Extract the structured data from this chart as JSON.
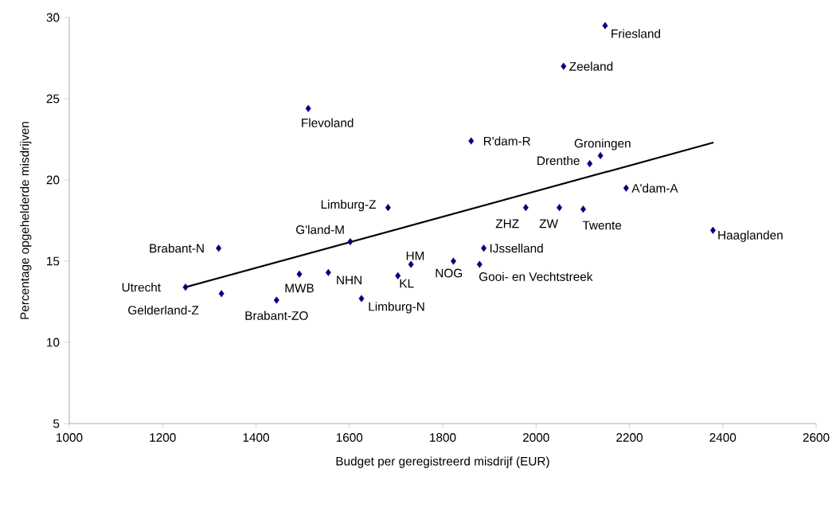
{
  "chart_data": {
    "type": "scatter",
    "xlabel": "Budget per geregistreerd misdrijf (EUR)",
    "ylabel": "Percentage opgehelderde misdrijven",
    "xlim": [
      1000,
      2600
    ],
    "xticks": [
      1000,
      1200,
      1400,
      1600,
      1800,
      2000,
      2200,
      2400,
      2600
    ],
    "ylim": [
      5,
      30
    ],
    "yticks": [
      5,
      10,
      15,
      20,
      25,
      30
    ],
    "grid": false,
    "marker": "diamond",
    "series": [
      {
        "color": "#000080",
        "x": [
          2148,
          2059,
          1512,
          1861,
          2138,
          2115,
          2193,
          1683,
          1978,
          2050,
          2101,
          1602,
          1320,
          2379,
          1888,
          1732,
          1823,
          1879,
          1493,
          1555,
          1704,
          1249,
          1326,
          1444,
          1626
        ],
        "values": [
          29.5,
          27.0,
          24.4,
          22.4,
          21.5,
          21.0,
          19.5,
          18.3,
          18.3,
          18.3,
          18.2,
          16.2,
          15.8,
          16.9,
          15.8,
          14.8,
          15.0,
          14.8,
          14.2,
          14.3,
          14.1,
          13.4,
          13.0,
          12.6,
          12.7
        ]
      },
      {
        "type": "line",
        "color": "#000000",
        "marker": "none",
        "line_style": "solid",
        "x": [
          1249,
          2380
        ],
        "values": [
          13.4,
          22.3
        ]
      }
    ],
    "annotations": [
      {
        "text": "Friesland",
        "x": 2148,
        "y": 29.5
      },
      {
        "text": "Zeeland",
        "x": 2059,
        "y": 27.0
      },
      {
        "text": "Flevoland",
        "x": 1512,
        "y": 24.4
      },
      {
        "text": "R'dam-R",
        "x": 1861,
        "y": 22.4
      },
      {
        "text": "Groningen",
        "x": 2138,
        "y": 21.5
      },
      {
        "text": "Drenthe",
        "x": 2115,
        "y": 21.0
      },
      {
        "text": "A'dam-A",
        "x": 2193,
        "y": 19.5
      },
      {
        "text": "Limburg-Z",
        "x": 1683,
        "y": 18.3
      },
      {
        "text": "ZHZ",
        "x": 1978,
        "y": 18.3
      },
      {
        "text": "ZW",
        "x": 2050,
        "y": 18.3
      },
      {
        "text": "Twente",
        "x": 2101,
        "y": 18.2
      },
      {
        "text": "G'land-M",
        "x": 1602,
        "y": 16.2
      },
      {
        "text": "Brabant-N",
        "x": 1320,
        "y": 15.8
      },
      {
        "text": "Haaglanden",
        "x": 2379,
        "y": 16.9
      },
      {
        "text": "IJsselland",
        "x": 1888,
        "y": 15.8
      },
      {
        "text": "HM",
        "x": 1732,
        "y": 14.8
      },
      {
        "text": "NOG",
        "x": 1823,
        "y": 15.0
      },
      {
        "text": "Gooi- en Vechtstreek",
        "x": 1879,
        "y": 14.8
      },
      {
        "text": "MWB",
        "x": 1493,
        "y": 14.2
      },
      {
        "text": "NHN",
        "x": 1555,
        "y": 14.3
      },
      {
        "text": "KL",
        "x": 1704,
        "y": 14.1
      },
      {
        "text": "Utrecht",
        "x": 1249,
        "y": 13.4
      },
      {
        "text": "Gelderland-Z",
        "x": 1326,
        "y": 13.0
      },
      {
        "text": "Brabant-ZO",
        "x": 1444,
        "y": 12.6
      },
      {
        "text": "Limburg-N",
        "x": 1626,
        "y": 12.7
      }
    ]
  }
}
